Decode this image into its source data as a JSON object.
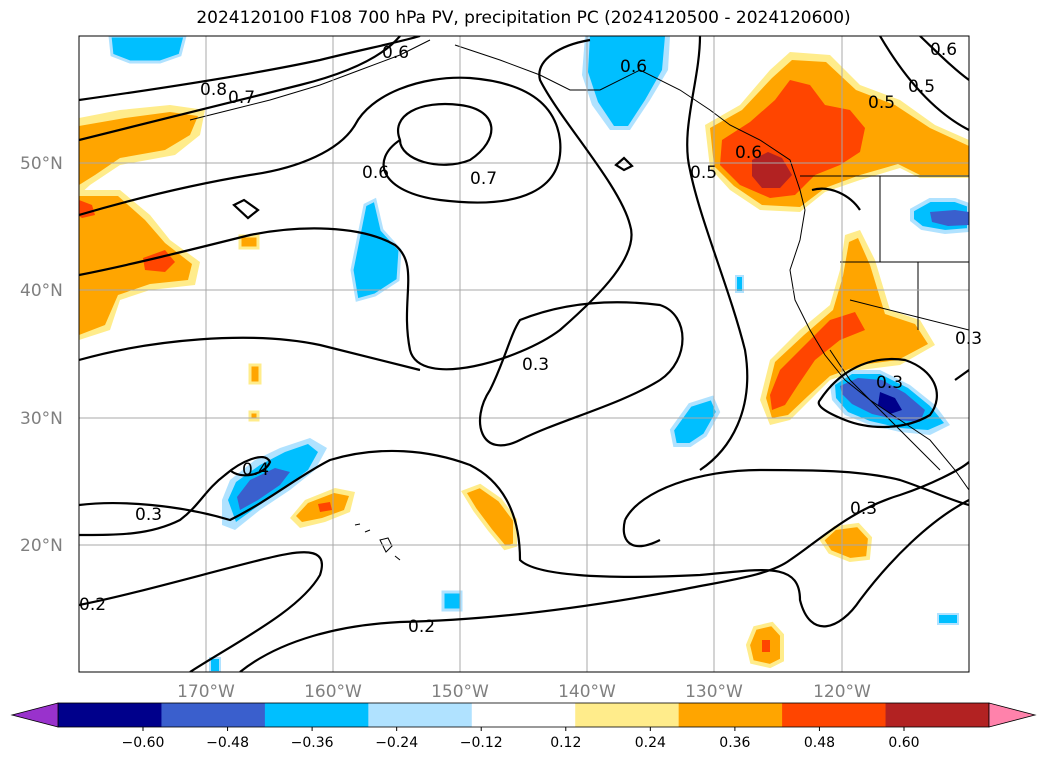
{
  "title": "2024120100 F108 700 hPa PV, precipitation PC (2024120500 - 2024120600)",
  "map": {
    "projection": "PlateCarree",
    "lon_range": [
      -180,
      -110
    ],
    "lat_range": [
      10,
      60
    ],
    "lat_ticks": [
      "50°N",
      "40°N",
      "30°N",
      "20°N"
    ],
    "lon_ticks": [
      "170°W",
      "160°W",
      "150°W",
      "140°W",
      "130°W",
      "120°W"
    ],
    "gridlines": true
  },
  "contours": {
    "variable": "700 hPa PV",
    "color": "#000000",
    "labels": [
      "0.8",
      "0.7",
      "0.6",
      "0.6",
      "0.7",
      "0.6",
      "0.5",
      "0.5",
      "0.5",
      "0.6",
      "0.3",
      "0.3",
      "0.3",
      "0.4",
      "0.2",
      "0.2",
      "0.6",
      "0.3",
      "0.3"
    ]
  },
  "colorbar": {
    "ticks": [
      "−0.60",
      "−0.48",
      "−0.36",
      "−0.24",
      "−0.12",
      "0.12",
      "0.24",
      "0.36",
      "0.48",
      "0.60"
    ],
    "colors": [
      "#9932cc",
      "#00008b",
      "#3a5fcd",
      "#00bfff",
      "#b0e2ff",
      "#ffffff",
      "#ffec8b",
      "#ffa500",
      "#ff4500",
      "#b22222",
      "#ff82ab"
    ],
    "extend": "both"
  },
  "palette": {
    "light_blue": "#b0e2ff",
    "sky_blue": "#00bfff",
    "royal_blue": "#3a5fcd",
    "navy": "#00008b",
    "light_yellow": "#ffec8b",
    "orange": "#ffa500",
    "red_orange": "#ff4500",
    "firebrick": "#b22222"
  }
}
